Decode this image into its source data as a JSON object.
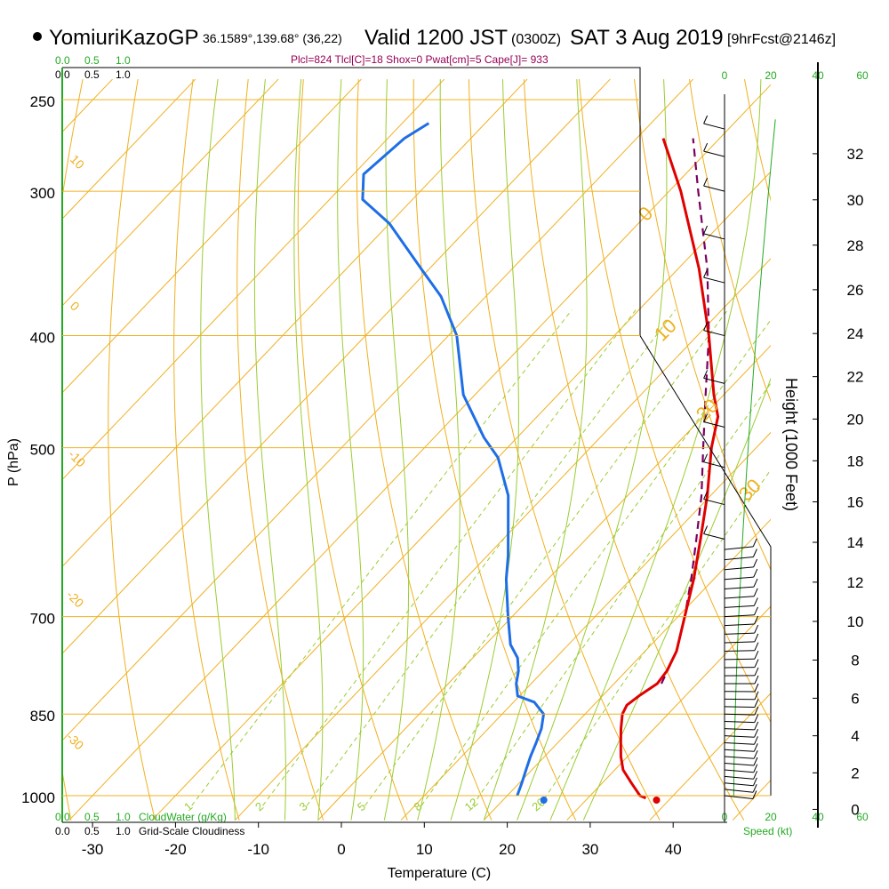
{
  "header": {
    "station": "YomiuriKazoGP",
    "coords": "36.1589°,139.68° (36,22)",
    "valid": "Valid 1200 JST",
    "utc": "(0300Z)",
    "date": "SAT 3 Aug 2019",
    "forecast": "[9hrFcst@2146z]",
    "indices": "Plcl=824 Tlcl[C]=18 Shox=0 Pwat[cm]=5 Cape[J]= 933"
  },
  "colors": {
    "temperature": "#e00000",
    "dewpoint": "#1e6ee6",
    "parcel": "#7a0060",
    "isotherm": "#f0b020",
    "dry_adiabat": "#9acd32",
    "mixing_ratio": "#9acd32",
    "green_label": "#22aa22",
    "index_text": "#990055"
  },
  "chart_data": {
    "type": "skew-t",
    "xlabel": "Temperature (C)",
    "ylabel": "P (hPa)",
    "y2label": "Height (1000 Feet)",
    "x_ticks": [
      "-30",
      "-20",
      "-10",
      "0",
      "10",
      "20",
      "30",
      "40"
    ],
    "x_tick_values": [
      -30,
      -20,
      -10,
      0,
      10,
      20,
      30,
      40
    ],
    "pressure_ticks": [
      250,
      300,
      400,
      500,
      700,
      850,
      1000
    ],
    "pressure_tick_labels": [
      "250",
      "300",
      "400",
      "500",
      "700",
      "850",
      "1000"
    ],
    "height_ticks": [
      0,
      2,
      4,
      6,
      8,
      10,
      12,
      14,
      16,
      18,
      20,
      22,
      24,
      26,
      28,
      30,
      32
    ],
    "height_tick_labels": [
      "0",
      "2",
      "4",
      "6",
      "8",
      "10",
      "12",
      "14",
      "16",
      "18",
      "20",
      "22",
      "24",
      "26",
      "28",
      "30",
      "32"
    ],
    "temp_range": [
      -34,
      48
    ],
    "pressure_range": [
      250,
      1020
    ],
    "skewed_isotherm_labels": [
      "10",
      "0",
      "-10",
      "-20",
      "-30"
    ],
    "dry_adiabat_labels": [
      "0",
      "10",
      "20",
      "30"
    ],
    "mixing_ratio_labels": [
      "1",
      "2",
      "3",
      "5",
      "8",
      "12",
      "20"
    ],
    "temperature_profile": [
      {
        "p": 1005,
        "t": 37.0
      },
      {
        "p": 1000,
        "t": 36.0
      },
      {
        "p": 975,
        "t": 33.5
      },
      {
        "p": 950,
        "t": 31.0
      },
      {
        "p": 925,
        "t": 29.2
      },
      {
        "p": 900,
        "t": 27.6
      },
      {
        "p": 875,
        "t": 26.0
      },
      {
        "p": 850,
        "t": 24.5
      },
      {
        "p": 835,
        "t": 24.0
      },
      {
        "p": 820,
        "t": 24.4
      },
      {
        "p": 800,
        "t": 25.2
      },
      {
        "p": 780,
        "t": 24.9
      },
      {
        "p": 750,
        "t": 23.8
      },
      {
        "p": 700,
        "t": 20.8
      },
      {
        "p": 650,
        "t": 17.6
      },
      {
        "p": 600,
        "t": 13.8
      },
      {
        "p": 550,
        "t": 9.6
      },
      {
        "p": 500,
        "t": 4.6
      },
      {
        "p": 470,
        "t": 1.8
      },
      {
        "p": 450,
        "t": -1.2
      },
      {
        "p": 400,
        "t": -8.6
      },
      {
        "p": 350,
        "t": -17.5
      },
      {
        "p": 300,
        "t": -28.6
      },
      {
        "p": 270,
        "t": -36.8
      }
    ],
    "dewpoint_profile": [
      {
        "p": 1000,
        "t": 21.2
      },
      {
        "p": 975,
        "t": 20.3
      },
      {
        "p": 950,
        "t": 19.3
      },
      {
        "p": 925,
        "t": 18.3
      },
      {
        "p": 900,
        "t": 17.4
      },
      {
        "p": 875,
        "t": 16.4
      },
      {
        "p": 850,
        "t": 15.0
      },
      {
        "p": 830,
        "t": 12.5
      },
      {
        "p": 820,
        "t": 9.8
      },
      {
        "p": 800,
        "t": 8.2
      },
      {
        "p": 780,
        "t": 7.0
      },
      {
        "p": 760,
        "t": 5.4
      },
      {
        "p": 740,
        "t": 3.0
      },
      {
        "p": 700,
        "t": -0.5
      },
      {
        "p": 650,
        "t": -5.0
      },
      {
        "p": 620,
        "t": -7.5
      },
      {
        "p": 550,
        "t": -14.4
      },
      {
        "p": 510,
        "t": -20.0
      },
      {
        "p": 490,
        "t": -24.0
      },
      {
        "p": 450,
        "t": -31.4
      },
      {
        "p": 400,
        "t": -39.0
      },
      {
        "p": 370,
        "t": -45.4
      },
      {
        "p": 350,
        "t": -51.0
      },
      {
        "p": 320,
        "t": -60.0
      },
      {
        "p": 305,
        "t": -66.0
      },
      {
        "p": 290,
        "t": -68.8
      },
      {
        "p": 270,
        "t": -68.0
      },
      {
        "p": 262,
        "t": -66.8
      }
    ],
    "parcel_profile": [
      {
        "p": 800,
        "t": 25.7
      },
      {
        "p": 750,
        "t": 23.8
      },
      {
        "p": 700,
        "t": 20.8
      },
      {
        "p": 650,
        "t": 17.3
      },
      {
        "p": 600,
        "t": 13.3
      },
      {
        "p": 550,
        "t": 8.9
      },
      {
        "p": 500,
        "t": 3.6
      },
      {
        "p": 450,
        "t": -2.2
      },
      {
        "p": 400,
        "t": -8.6
      },
      {
        "p": 350,
        "t": -16.5
      },
      {
        "p": 300,
        "t": -26.5
      },
      {
        "p": 270,
        "t": -33.2
      }
    ],
    "surface_temperature": 38.0,
    "surface_dewpoint": 24.4,
    "wind_speed_ticks": [
      "0",
      "20",
      "40",
      "60"
    ],
    "wind_speed_label": "Speed (kt)",
    "top_scales": {
      "cloud_water": [
        "0.0",
        "0.5",
        "1.0"
      ],
      "cloudiness": [
        "0.0",
        "0.5",
        "1.0"
      ]
    },
    "bottom_scales": {
      "cloud_water": [
        "0.0",
        "0.5",
        "1.0"
      ],
      "cloud_water_label": "CloudWater (g/Kg)",
      "cloudiness": [
        "0.0",
        "0.5",
        "1.0"
      ],
      "cloudiness_label": "Grid-Scale Cloudiness"
    }
  }
}
